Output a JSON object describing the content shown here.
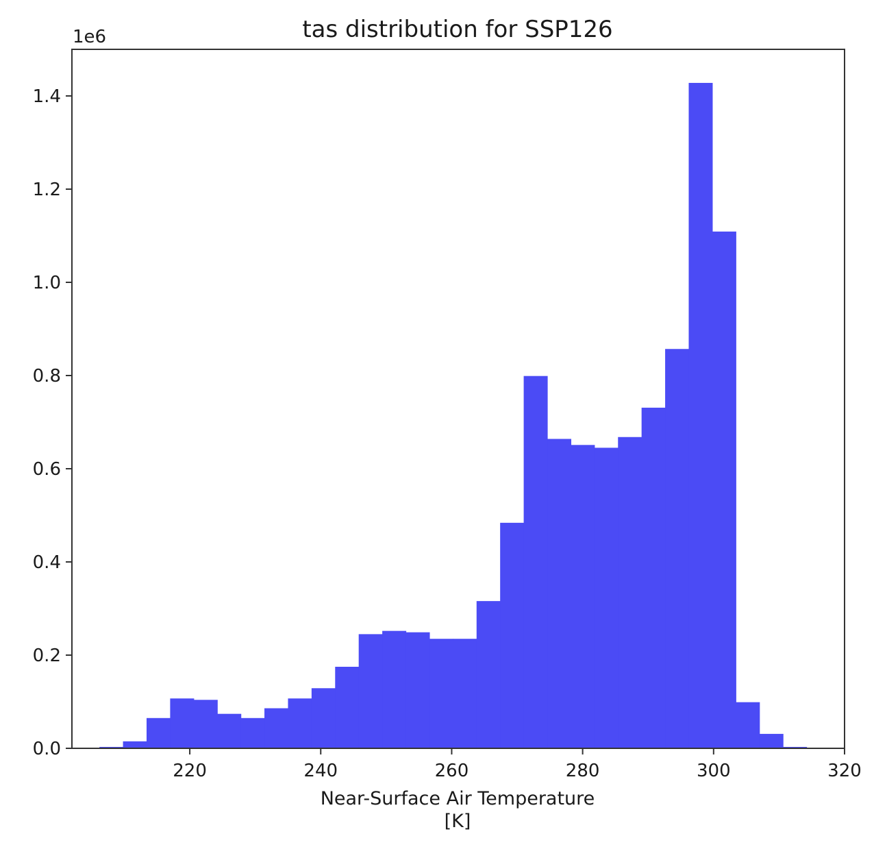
{
  "chart_data": {
    "type": "bar",
    "subtype": "histogram",
    "title": "tas distribution for SSP126",
    "xlabel": "Near-Surface Air Temperature",
    "xlabel_units": "[K]",
    "ylabel": "",
    "y_offset_label": "1e6",
    "y_scale": 1000000,
    "xlim": [
      202,
      320
    ],
    "ylim": [
      0,
      1.5
    ],
    "xticks": [
      220,
      240,
      260,
      280,
      300,
      320
    ],
    "xtick_labels": [
      "220",
      "240",
      "260",
      "280",
      "300",
      "320"
    ],
    "yticks": [
      0.0,
      0.2,
      0.4,
      0.6,
      0.8,
      1.0,
      1.2,
      1.4
    ],
    "ytick_labels": [
      "0.0",
      "0.2",
      "0.4",
      "0.6",
      "0.8",
      "1.0",
      "1.2",
      "1.4"
    ],
    "bar_color": "#4b4bf5",
    "bin_edges": [
      206.2,
      209.8,
      213.4,
      217.0,
      220.6,
      224.2,
      227.8,
      231.4,
      235.0,
      238.6,
      242.2,
      245.8,
      249.4,
      253.0,
      256.6,
      260.2,
      263.8,
      267.4,
      271.0,
      274.6,
      278.2,
      281.8,
      285.4,
      289.0,
      292.6,
      296.2,
      299.8,
      303.4,
      307.0,
      310.6,
      314.2
    ],
    "values": [
      0.003,
      0.015,
      0.065,
      0.107,
      0.104,
      0.074,
      0.065,
      0.086,
      0.107,
      0.129,
      0.175,
      0.245,
      0.252,
      0.249,
      0.235,
      0.235,
      0.316,
      0.484,
      0.799,
      0.664,
      0.651,
      0.645,
      0.668,
      0.731,
      0.857,
      1.428,
      1.109,
      0.099,
      0.031,
      0.003
    ]
  }
}
